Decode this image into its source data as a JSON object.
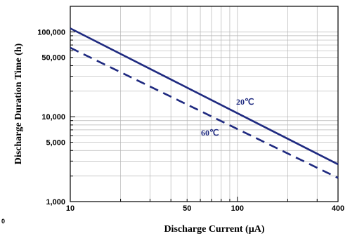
{
  "chart_data": {
    "type": "line",
    "xlabel": "Discharge Current (µA)",
    "ylabel": "Discharge Duration Time (h)",
    "x_scale": "log",
    "y_scale": "log",
    "xlim": [
      10,
      400
    ],
    "ylim": [
      1000,
      200000
    ],
    "grid": true,
    "x_ticks": [
      {
        "value": 10,
        "label": "10"
      },
      {
        "value": 50,
        "label": "50"
      },
      {
        "value": 100,
        "label": "100"
      },
      {
        "value": 400,
        "label": "400"
      }
    ],
    "y_ticks": [
      {
        "value": 100000,
        "label": "100,000"
      },
      {
        "value": 50000,
        "label": "50,000"
      },
      {
        "value": 10000,
        "label": "10,000"
      },
      {
        "value": 5000,
        "label": "5,000"
      },
      {
        "value": 1000,
        "label": "1,000"
      }
    ],
    "series": [
      {
        "name": "20℃",
        "style": "solid",
        "color": "#1f2a80",
        "x": [
          10,
          400
        ],
        "y": [
          110000,
          2750
        ]
      },
      {
        "name": "60℃",
        "style": "dashed",
        "color": "#1f2a80",
        "x": [
          10,
          400
        ],
        "y": [
          65000,
          1900
        ]
      }
    ],
    "corner_label": "0"
  }
}
